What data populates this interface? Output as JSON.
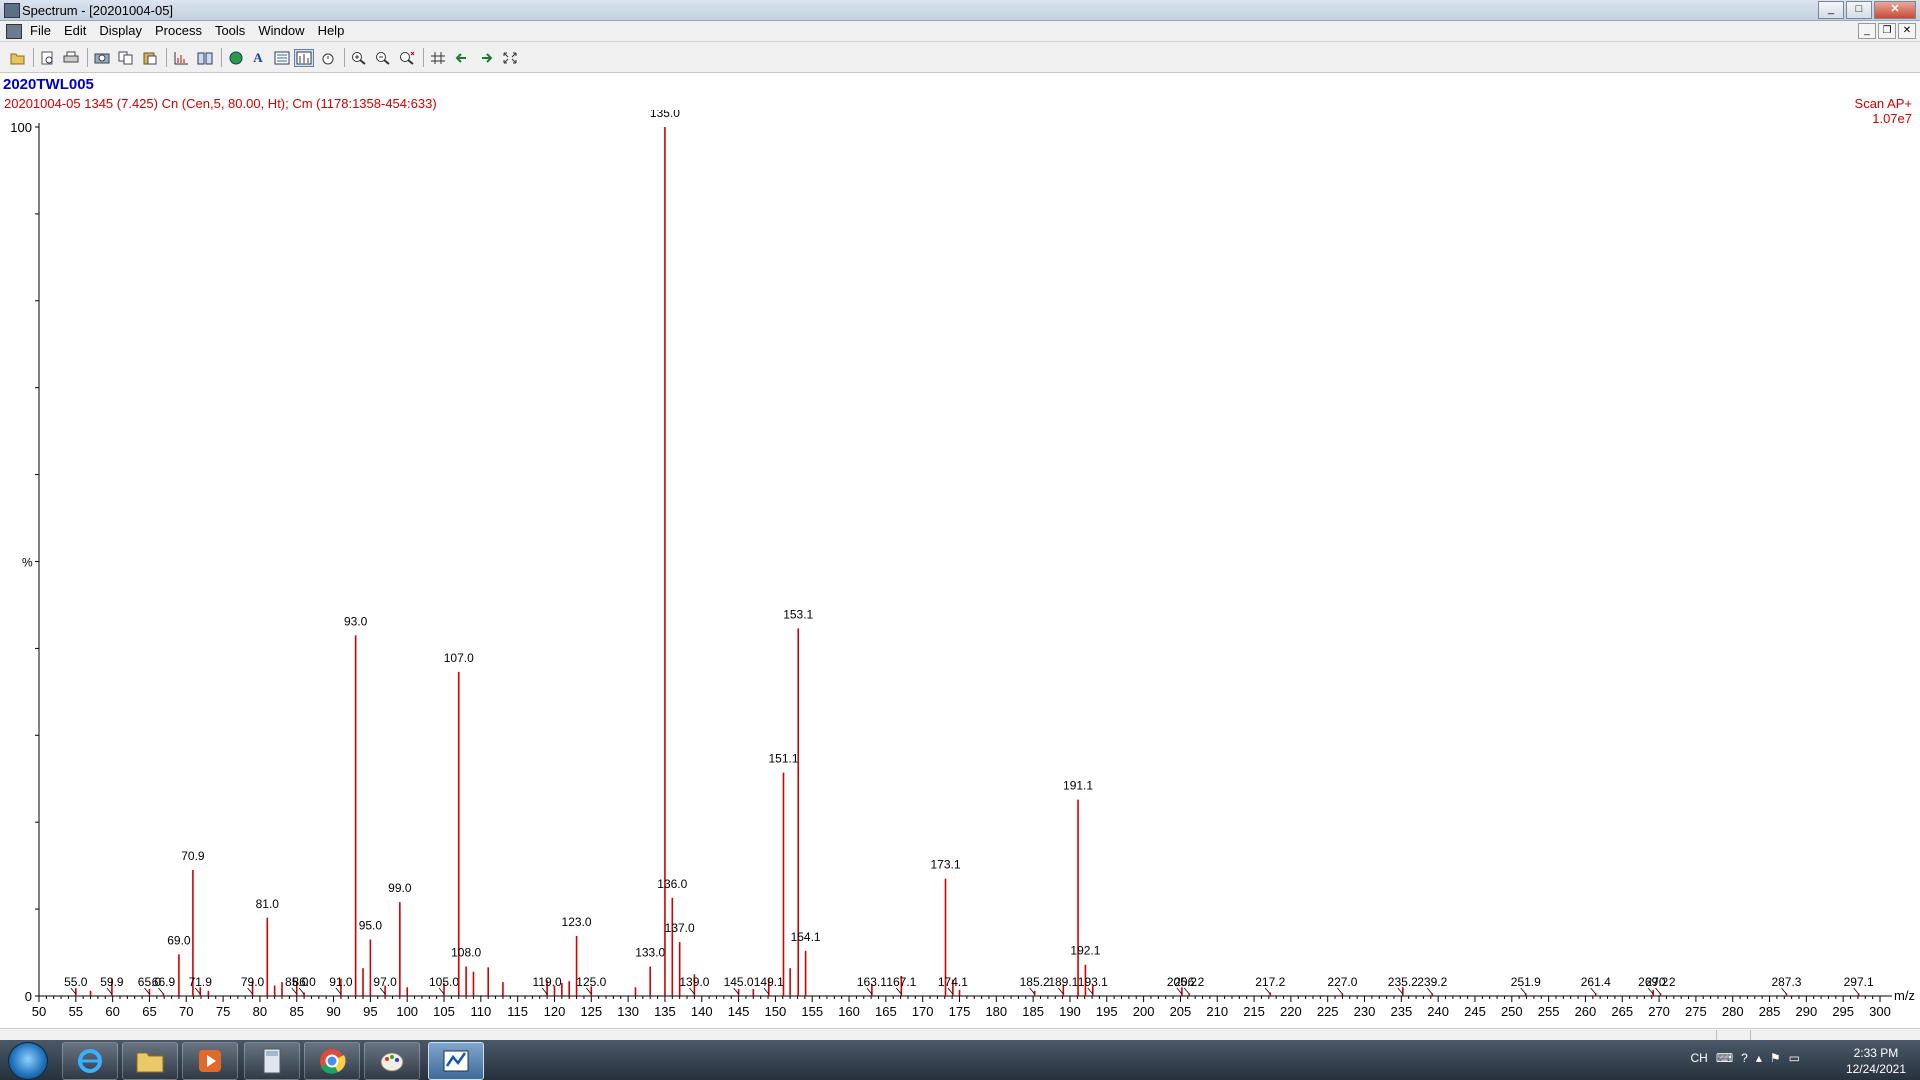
{
  "window": {
    "title": "Spectrum - [20201004-05]",
    "buttons": [
      "_",
      "□",
      "✕"
    ]
  },
  "menu": [
    "File",
    "Edit",
    "Display",
    "Process",
    "Tools",
    "Window",
    "Help"
  ],
  "mdi_buttons": [
    "_",
    "❐",
    "✕"
  ],
  "toolbar_icons": [
    "open-icon",
    "print-preview-icon",
    "print-icon",
    "copy-picture-icon",
    "copy-icon",
    "paste-icon",
    "chart-icon",
    "book-icon",
    "globe-icon",
    "text-icon",
    "list-icon",
    "spectrum-mode-icon",
    "timer-icon",
    "zoom-in-icon",
    "zoom-out-icon",
    "zoom-reset-icon",
    "grid-icon",
    "back-arrow-icon",
    "forward-arrow-icon",
    "fit-icon"
  ],
  "sample_name": "2020TWL005",
  "description": "20201004-05  1345 (7.425) Cn (Cen,5, 80.00, Ht); Cm (1178:1358-454:633)",
  "scan_mode": "Scan AP+",
  "intensity": "1.07e7",
  "colors": {
    "peaks": "#d40000",
    "sample_name": "#0000cc",
    "axis": "#000000"
  },
  "chart_data": {
    "type": "bar",
    "xlabel": "m/z",
    "ylabel": "%",
    "xlim": [
      50,
      300
    ],
    "ylim": [
      0,
      100
    ],
    "x_ticks": [
      50,
      55,
      60,
      65,
      70,
      75,
      80,
      85,
      90,
      95,
      100,
      105,
      110,
      115,
      120,
      125,
      130,
      135,
      140,
      145,
      150,
      155,
      160,
      165,
      170,
      175,
      180,
      185,
      190,
      195,
      200,
      205,
      210,
      215,
      220,
      225,
      230,
      235,
      240,
      245,
      250,
      255,
      260,
      265,
      270,
      275,
      280,
      285,
      290,
      295,
      300
    ],
    "y_tick_labels": [
      "0",
      "100"
    ],
    "peaks": [
      {
        "mz": 55.0,
        "i": 0.9,
        "label": "55.0"
      },
      {
        "mz": 57.0,
        "i": 0.6
      },
      {
        "mz": 59.9,
        "i": 2.0,
        "label": "59.9"
      },
      {
        "mz": 65.0,
        "i": 0.8,
        "label": "65.0"
      },
      {
        "mz": 66.9,
        "i": 0.3,
        "label": "66.9"
      },
      {
        "mz": 69.0,
        "i": 4.8,
        "label": "69.0"
      },
      {
        "mz": 70.9,
        "i": 14.5,
        "label": "70.9"
      },
      {
        "mz": 71.9,
        "i": 1.0,
        "label": "71.9"
      },
      {
        "mz": 73.0,
        "i": 0.6
      },
      {
        "mz": 79.0,
        "i": 1.8,
        "label": "79.0"
      },
      {
        "mz": 81.0,
        "i": 9.0,
        "label": "81.0"
      },
      {
        "mz": 82.0,
        "i": 1.2
      },
      {
        "mz": 83.0,
        "i": 1.6
      },
      {
        "mz": 85.0,
        "i": 1.7,
        "label": "85.0"
      },
      {
        "mz": 86.0,
        "i": 0.4,
        "label": "86.0"
      },
      {
        "mz": 91.0,
        "i": 2.0,
        "label": "91.0"
      },
      {
        "mz": 93.0,
        "i": 41.5,
        "label": "93.0"
      },
      {
        "mz": 94.0,
        "i": 3.2
      },
      {
        "mz": 95.0,
        "i": 6.5,
        "label": "95.0"
      },
      {
        "mz": 97.0,
        "i": 1.2,
        "label": "97.0"
      },
      {
        "mz": 99.0,
        "i": 10.8,
        "label": "99.0"
      },
      {
        "mz": 100.0,
        "i": 1.0
      },
      {
        "mz": 105.0,
        "i": 1.5,
        "label": "105.0"
      },
      {
        "mz": 107.0,
        "i": 37.3,
        "label": "107.0"
      },
      {
        "mz": 108.0,
        "i": 3.4,
        "label": "108.0"
      },
      {
        "mz": 109.0,
        "i": 2.8
      },
      {
        "mz": 111.0,
        "i": 3.3
      },
      {
        "mz": 113.0,
        "i": 1.6
      },
      {
        "mz": 119.0,
        "i": 1.8,
        "label": "119.0"
      },
      {
        "mz": 120.0,
        "i": 1.2
      },
      {
        "mz": 121.0,
        "i": 1.5
      },
      {
        "mz": 122.0,
        "i": 1.7
      },
      {
        "mz": 123.0,
        "i": 6.9,
        "label": "123.0"
      },
      {
        "mz": 125.0,
        "i": 1.1,
        "label": "125.0"
      },
      {
        "mz": 131.0,
        "i": 1.0
      },
      {
        "mz": 133.0,
        "i": 3.4,
        "label": "133.0"
      },
      {
        "mz": 135.0,
        "i": 100.0,
        "label": "135.0"
      },
      {
        "mz": 136.0,
        "i": 11.3,
        "label": "136.0"
      },
      {
        "mz": 137.0,
        "i": 6.2,
        "label": "137.0"
      },
      {
        "mz": 139.0,
        "i": 2.5,
        "label": "139.0"
      },
      {
        "mz": 145.0,
        "i": 0.8,
        "label": "145.0"
      },
      {
        "mz": 147.0,
        "i": 0.8
      },
      {
        "mz": 149.1,
        "i": 2.0,
        "label": "149.1"
      },
      {
        "mz": 151.1,
        "i": 25.7,
        "label": "151.1"
      },
      {
        "mz": 152.0,
        "i": 3.2
      },
      {
        "mz": 153.1,
        "i": 42.3,
        "label": "153.1"
      },
      {
        "mz": 154.1,
        "i": 5.2,
        "label": "154.1"
      },
      {
        "mz": 163.1,
        "i": 1.4,
        "label": "163.1"
      },
      {
        "mz": 167.1,
        "i": 2.3,
        "label": "167.1"
      },
      {
        "mz": 173.1,
        "i": 13.5,
        "label": "173.1"
      },
      {
        "mz": 174.1,
        "i": 1.9,
        "label": "174.1"
      },
      {
        "mz": 175.0,
        "i": 0.7
      },
      {
        "mz": 185.2,
        "i": 0.6,
        "label": "185.2"
      },
      {
        "mz": 189.1,
        "i": 1.3,
        "label": "189.1"
      },
      {
        "mz": 191.1,
        "i": 22.6,
        "label": "191.1"
      },
      {
        "mz": 192.1,
        "i": 3.6,
        "label": "192.1"
      },
      {
        "mz": 193.1,
        "i": 1.2,
        "label": "193.1"
      },
      {
        "mz": 205.2,
        "i": 1.0,
        "label": "205.2"
      },
      {
        "mz": 206.2,
        "i": 0.3,
        "label": "206.2"
      },
      {
        "mz": 217.2,
        "i": 0.4,
        "label": "217.2"
      },
      {
        "mz": 227.0,
        "i": 0.3,
        "label": "227.0"
      },
      {
        "mz": 235.2,
        "i": 1.0,
        "label": "235.2"
      },
      {
        "mz": 239.2,
        "i": 0.3,
        "label": "239.2"
      },
      {
        "mz": 251.9,
        "i": 0.3,
        "label": "251.9"
      },
      {
        "mz": 261.4,
        "i": 0.3,
        "label": "261.4"
      },
      {
        "mz": 269.2,
        "i": 0.7,
        "label": "269.2"
      },
      {
        "mz": 270.2,
        "i": 0.3,
        "label": "270.2"
      },
      {
        "mz": 287.3,
        "i": 0.3,
        "label": "287.3"
      },
      {
        "mz": 297.1,
        "i": 0.3,
        "label": "297.1"
      }
    ]
  },
  "taskbar": {
    "apps": [
      "internet-explorer-icon",
      "file-explorer-icon",
      "media-player-icon",
      "calculator-icon",
      "chrome-icon",
      "paint-icon",
      "masslynx-icon"
    ],
    "tray_text": "CH",
    "time": "2:33 PM",
    "date": "12/24/2021"
  }
}
